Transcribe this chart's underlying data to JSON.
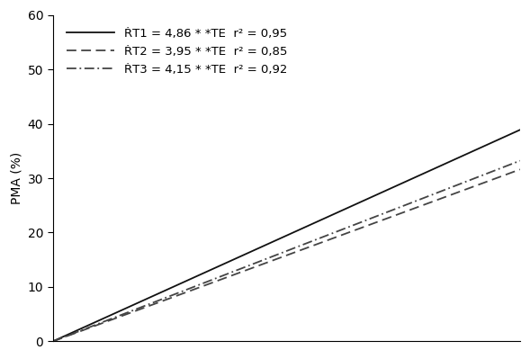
{
  "ylabel": "PMA (%)",
  "ylim": [
    0,
    60
  ],
  "xlim": [
    0,
    8
  ],
  "yticks": [
    0,
    10,
    20,
    30,
    40,
    50,
    60
  ],
  "lines": [
    {
      "label": "ṘT1 = 4,86 * *TE  r² = 0,95",
      "slope": 4.86,
      "color": "#111111",
      "linestyle": "solid",
      "linewidth": 1.3
    },
    {
      "label": "ṘT2 = 3,95 * *TE  r² = 0,85",
      "slope": 3.95,
      "color": "#444444",
      "linestyle": "dashed",
      "linewidth": 1.3
    },
    {
      "label": "ṘT3 = 4,15 * *TE  r² = 0,92",
      "slope": 4.15,
      "color": "#444444",
      "linestyle": "dashdot",
      "linewidth": 1.3
    }
  ],
  "legend_loc": "upper left",
  "background_color": "#ffffff",
  "axes_color": "#000000",
  "font_size": 10,
  "legend_fontsize": 9.5
}
